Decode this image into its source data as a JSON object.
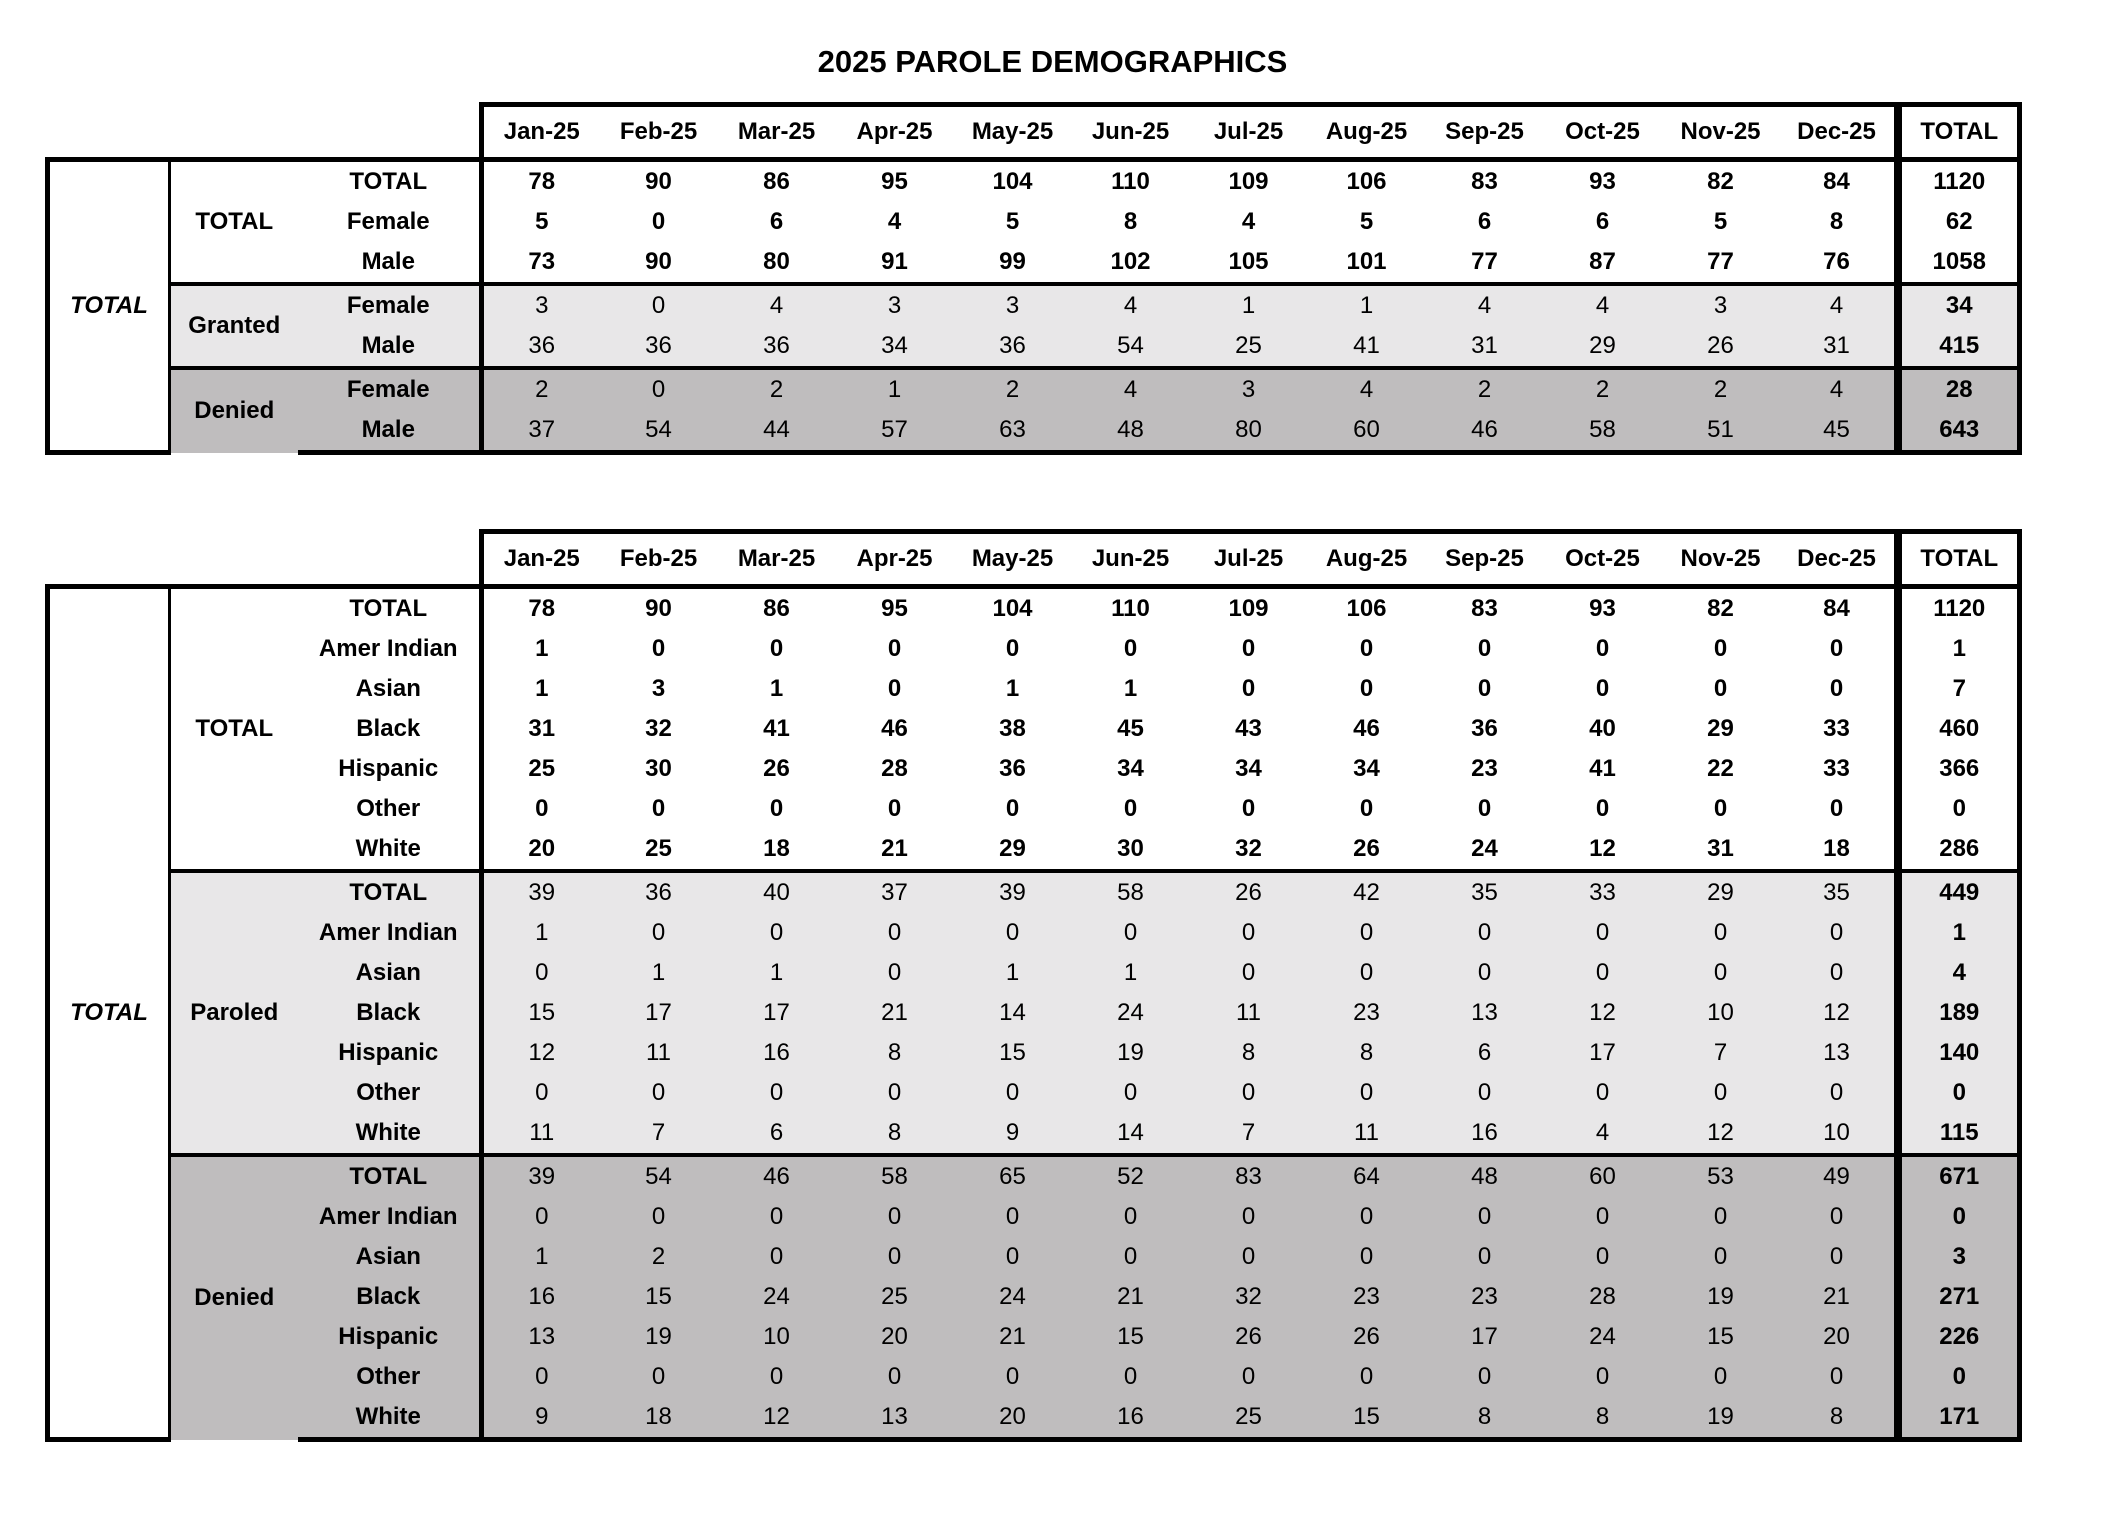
{
  "title": "2025 PAROLE DEMOGRAPHICS",
  "total_header": "TOTAL",
  "months": [
    "Jan-25",
    "Feb-25",
    "Mar-25",
    "Apr-25",
    "May-25",
    "Jun-25",
    "Jul-25",
    "Aug-25",
    "Sep-25",
    "Oct-25",
    "Nov-25",
    "Dec-25"
  ],
  "colors": {
    "shade_light": "#e8e7e8",
    "shade_dark": "#bfbdbe",
    "border": "#000000",
    "text": "#000000"
  },
  "table1": {
    "name": "parole-by-sex-table",
    "outer_label": "TOTAL",
    "groups": [
      {
        "label": "TOTAL",
        "shade": "none",
        "rows": [
          {
            "label": "TOTAL",
            "values_bold": true,
            "values": [
              78,
              90,
              86,
              95,
              104,
              110,
              109,
              106,
              83,
              93,
              82,
              84
            ],
            "total": 1120
          },
          {
            "label": "Female",
            "values_bold": true,
            "values": [
              5,
              0,
              6,
              4,
              5,
              8,
              4,
              5,
              6,
              6,
              5,
              8
            ],
            "total": 62
          },
          {
            "label": "Male",
            "values_bold": true,
            "values": [
              73,
              90,
              80,
              91,
              99,
              102,
              105,
              101,
              77,
              87,
              77,
              76
            ],
            "total": 1058
          }
        ]
      },
      {
        "label": "Granted",
        "shade": "light",
        "rows": [
          {
            "label": "Female",
            "values_bold": false,
            "values": [
              3,
              0,
              4,
              3,
              3,
              4,
              1,
              1,
              4,
              4,
              3,
              4
            ],
            "total": 34
          },
          {
            "label": "Male",
            "values_bold": false,
            "values": [
              36,
              36,
              36,
              34,
              36,
              54,
              25,
              41,
              31,
              29,
              26,
              31
            ],
            "total": 415
          }
        ]
      },
      {
        "label": "Denied",
        "shade": "dark",
        "rows": [
          {
            "label": "Female",
            "values_bold": false,
            "values": [
              2,
              0,
              2,
              1,
              2,
              4,
              3,
              4,
              2,
              2,
              2,
              4
            ],
            "total": 28
          },
          {
            "label": "Male",
            "values_bold": false,
            "values": [
              37,
              54,
              44,
              57,
              63,
              48,
              80,
              60,
              46,
              58,
              51,
              45
            ],
            "total": 643
          }
        ]
      }
    ]
  },
  "table2": {
    "name": "parole-by-race-table",
    "outer_label": "TOTAL",
    "groups": [
      {
        "label": "TOTAL",
        "shade": "none",
        "rows": [
          {
            "label": "TOTAL",
            "values_bold": true,
            "values": [
              78,
              90,
              86,
              95,
              104,
              110,
              109,
              106,
              83,
              93,
              82,
              84
            ],
            "total": 1120
          },
          {
            "label": "Amer Indian",
            "values_bold": true,
            "values": [
              1,
              0,
              0,
              0,
              0,
              0,
              0,
              0,
              0,
              0,
              0,
              0
            ],
            "total": 1
          },
          {
            "label": "Asian",
            "values_bold": true,
            "values": [
              1,
              3,
              1,
              0,
              1,
              1,
              0,
              0,
              0,
              0,
              0,
              0
            ],
            "total": 7
          },
          {
            "label": "Black",
            "values_bold": true,
            "values": [
              31,
              32,
              41,
              46,
              38,
              45,
              43,
              46,
              36,
              40,
              29,
              33
            ],
            "total": 460
          },
          {
            "label": "Hispanic",
            "values_bold": true,
            "values": [
              25,
              30,
              26,
              28,
              36,
              34,
              34,
              34,
              23,
              41,
              22,
              33
            ],
            "total": 366
          },
          {
            "label": "Other",
            "values_bold": true,
            "values": [
              0,
              0,
              0,
              0,
              0,
              0,
              0,
              0,
              0,
              0,
              0,
              0
            ],
            "total": 0
          },
          {
            "label": "White",
            "values_bold": true,
            "values": [
              20,
              25,
              18,
              21,
              29,
              30,
              32,
              26,
              24,
              12,
              31,
              18
            ],
            "total": 286
          }
        ]
      },
      {
        "label": "Paroled",
        "shade": "light",
        "rows": [
          {
            "label": "TOTAL",
            "values_bold": false,
            "values": [
              39,
              36,
              40,
              37,
              39,
              58,
              26,
              42,
              35,
              33,
              29,
              35
            ],
            "total": 449
          },
          {
            "label": "Amer Indian",
            "values_bold": false,
            "values": [
              1,
              0,
              0,
              0,
              0,
              0,
              0,
              0,
              0,
              0,
              0,
              0
            ],
            "total": 1
          },
          {
            "label": "Asian",
            "values_bold": false,
            "values": [
              0,
              1,
              1,
              0,
              1,
              1,
              0,
              0,
              0,
              0,
              0,
              0
            ],
            "total": 4
          },
          {
            "label": "Black",
            "values_bold": false,
            "values": [
              15,
              17,
              17,
              21,
              14,
              24,
              11,
              23,
              13,
              12,
              10,
              12
            ],
            "total": 189
          },
          {
            "label": "Hispanic",
            "values_bold": false,
            "values": [
              12,
              11,
              16,
              8,
              15,
              19,
              8,
              8,
              6,
              17,
              7,
              13
            ],
            "total": 140
          },
          {
            "label": "Other",
            "values_bold": false,
            "values": [
              0,
              0,
              0,
              0,
              0,
              0,
              0,
              0,
              0,
              0,
              0,
              0
            ],
            "total": 0
          },
          {
            "label": "White",
            "values_bold": false,
            "values": [
              11,
              7,
              6,
              8,
              9,
              14,
              7,
              11,
              16,
              4,
              12,
              10
            ],
            "total": 115
          }
        ]
      },
      {
        "label": "Denied",
        "shade": "dark",
        "rows": [
          {
            "label": "TOTAL",
            "values_bold": false,
            "values": [
              39,
              54,
              46,
              58,
              65,
              52,
              83,
              64,
              48,
              60,
              53,
              49
            ],
            "total": 671
          },
          {
            "label": "Amer Indian",
            "values_bold": false,
            "values": [
              0,
              0,
              0,
              0,
              0,
              0,
              0,
              0,
              0,
              0,
              0,
              0
            ],
            "total": 0
          },
          {
            "label": "Asian",
            "values_bold": false,
            "values": [
              1,
              2,
              0,
              0,
              0,
              0,
              0,
              0,
              0,
              0,
              0,
              0
            ],
            "total": 3
          },
          {
            "label": "Black",
            "values_bold": false,
            "values": [
              16,
              15,
              24,
              25,
              24,
              21,
              32,
              23,
              23,
              28,
              19,
              21
            ],
            "total": 271
          },
          {
            "label": "Hispanic",
            "values_bold": false,
            "values": [
              13,
              19,
              10,
              20,
              21,
              15,
              26,
              26,
              17,
              24,
              15,
              20
            ],
            "total": 226
          },
          {
            "label": "Other",
            "values_bold": false,
            "values": [
              0,
              0,
              0,
              0,
              0,
              0,
              0,
              0,
              0,
              0,
              0,
              0
            ],
            "total": 0
          },
          {
            "label": "White",
            "values_bold": false,
            "values": [
              9,
              18,
              12,
              13,
              20,
              16,
              25,
              15,
              8,
              8,
              19,
              8
            ],
            "total": 171
          }
        ]
      }
    ]
  }
}
